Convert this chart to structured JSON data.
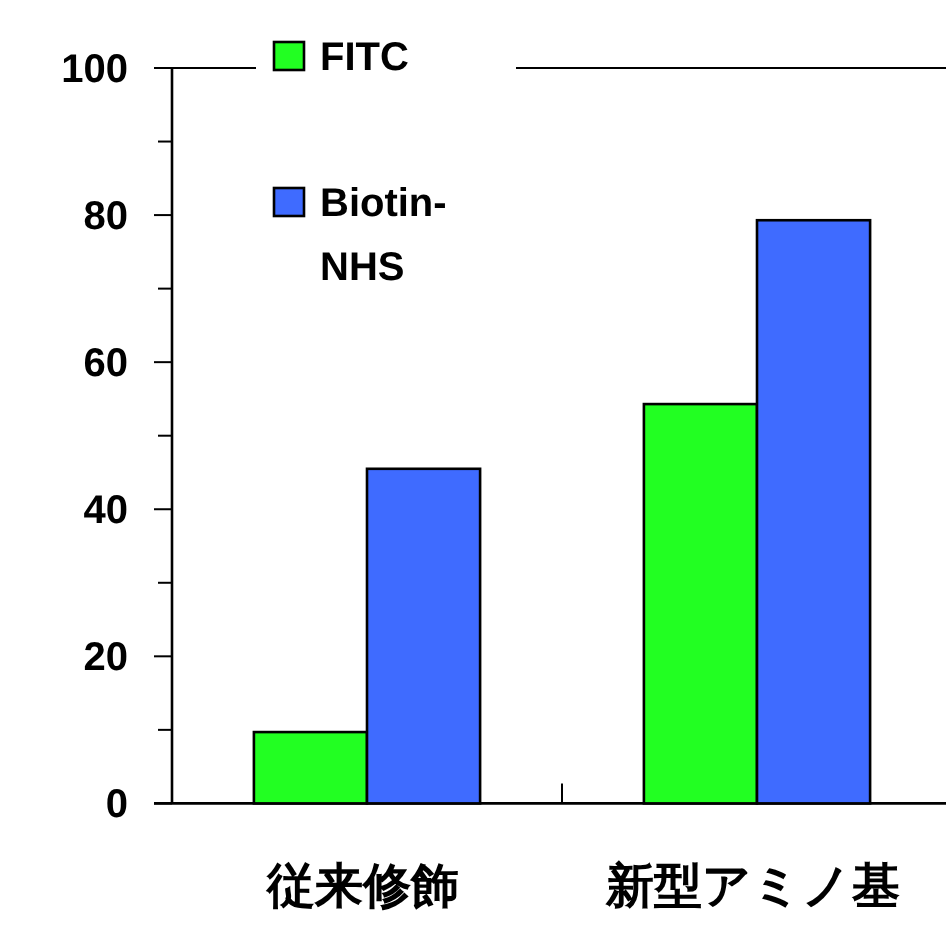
{
  "chart_data": {
    "type": "bar",
    "categories": [
      "従来修飾",
      "新型アミノ基"
    ],
    "series": [
      {
        "name": "FITC",
        "color": "#22ff22",
        "values": [
          9.7,
          54.3
        ]
      },
      {
        "name": "Biotin-NHS",
        "color": "#3f6bff",
        "values": [
          45.5,
          79.3
        ]
      }
    ],
    "ylim": [
      0,
      100
    ],
    "yticks": [
      0,
      {
        "value": 10,
        "label": null
      },
      20,
      {
        "value": 30,
        "label": null
      },
      40,
      {
        "value": 50,
        "label": null
      },
      60,
      {
        "value": 70,
        "label": null
      },
      80,
      {
        "value": 90,
        "label": null
      },
      100
    ],
    "legend": "top left"
  }
}
